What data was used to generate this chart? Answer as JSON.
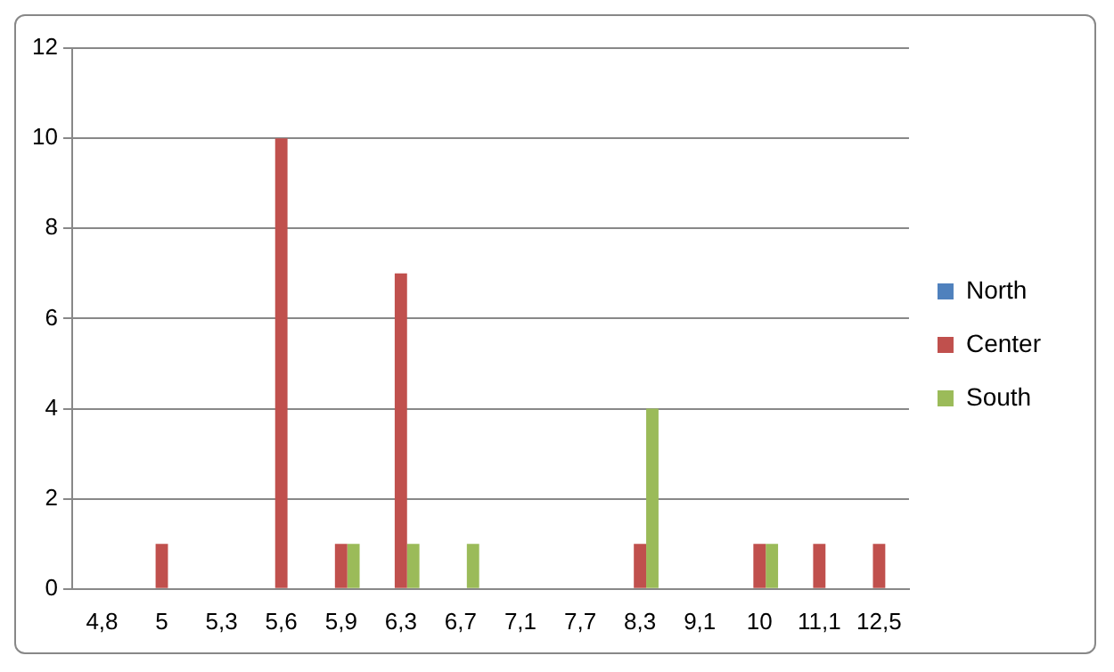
{
  "chart_data": {
    "type": "bar",
    "categories": [
      "4,8",
      "5",
      "5,3",
      "5,6",
      "5,9",
      "6,3",
      "6,7",
      "7,1",
      "7,7",
      "8,3",
      "9,1",
      "10",
      "11,1",
      "12,5"
    ],
    "series": [
      {
        "name": "North",
        "color": "#4f81bd",
        "values": [
          0,
          0,
          0,
          0,
          0,
          0,
          0,
          0,
          0,
          0,
          0,
          0,
          0,
          0
        ]
      },
      {
        "name": "Center",
        "color": "#c0504d",
        "values": [
          0,
          1,
          0,
          10,
          1,
          7,
          0,
          0,
          0,
          1,
          0,
          1,
          1,
          1
        ]
      },
      {
        "name": "South",
        "color": "#9bbb59",
        "values": [
          0,
          0,
          0,
          0,
          1,
          1,
          1,
          0,
          0,
          4,
          0,
          1,
          0,
          0
        ]
      }
    ],
    "ylim": [
      0,
      12
    ],
    "yticks": [
      0,
      2,
      4,
      6,
      8,
      10,
      12
    ],
    "grid": "y",
    "legend": "right"
  }
}
